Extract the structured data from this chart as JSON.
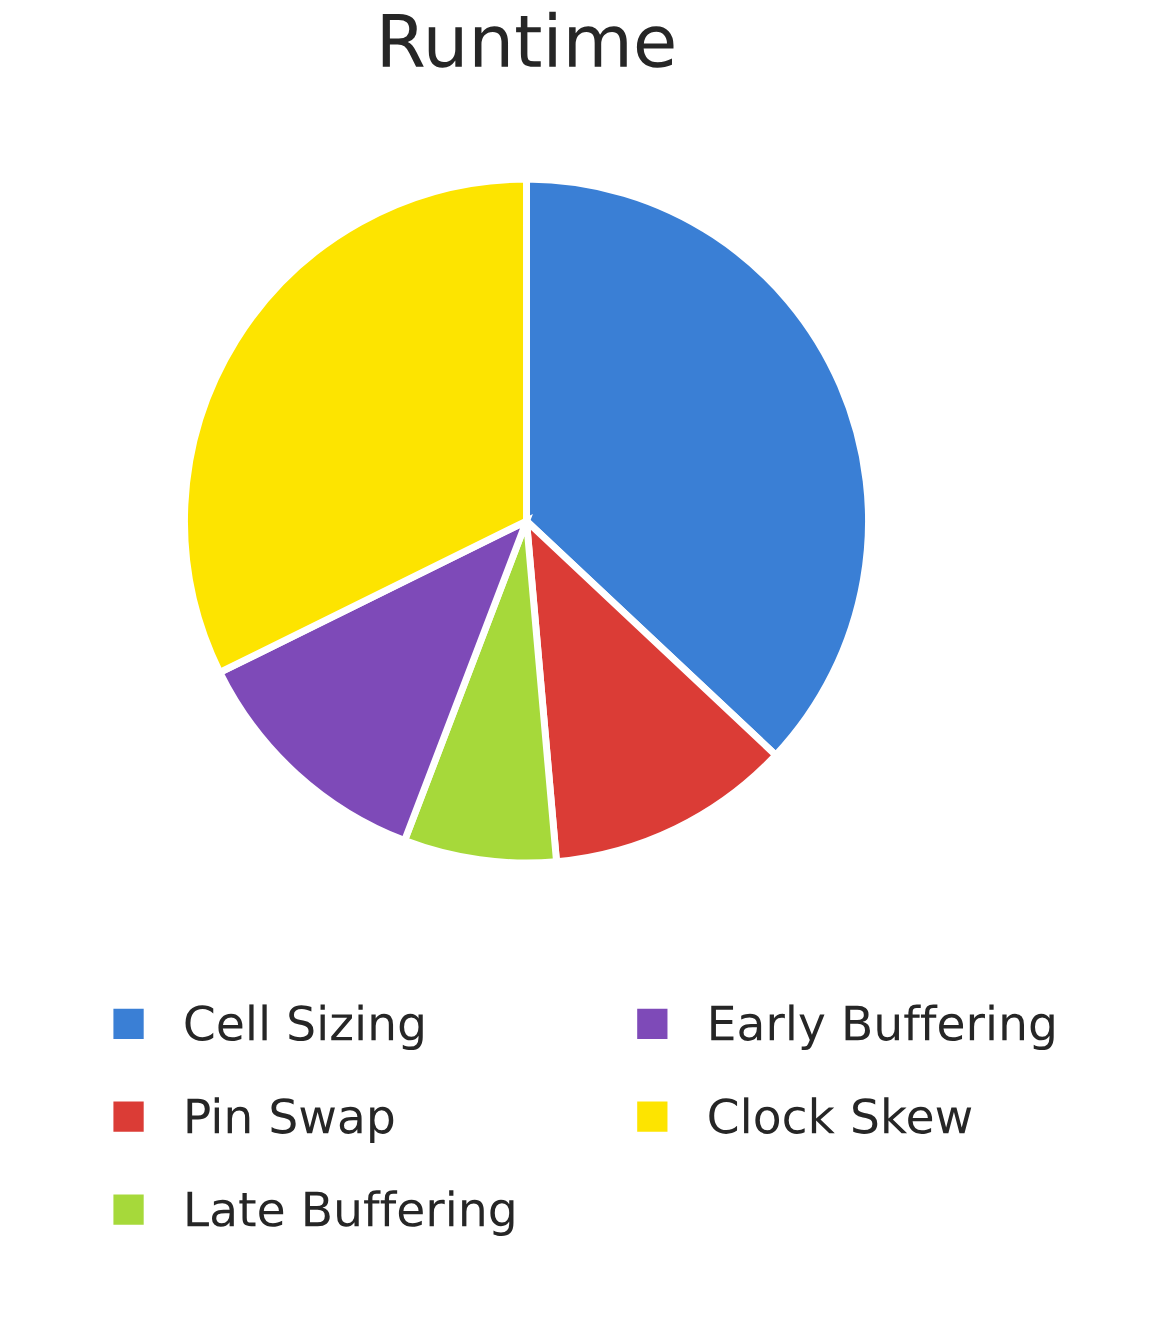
{
  "chart_data": {
    "type": "pie",
    "title": "Runtime",
    "categories": [
      "Cell Sizing",
      "Pin Swap",
      "Late Buffering",
      "Early Buffering",
      "Clock Skew"
    ],
    "values": [
      37,
      11.6,
      7.2,
      11.9,
      32.3
    ],
    "colors": [
      "#3a7fd5",
      "#db3c36",
      "#a6d93a",
      "#7e4ab8",
      "#fde400"
    ],
    "legend": "bottom"
  }
}
